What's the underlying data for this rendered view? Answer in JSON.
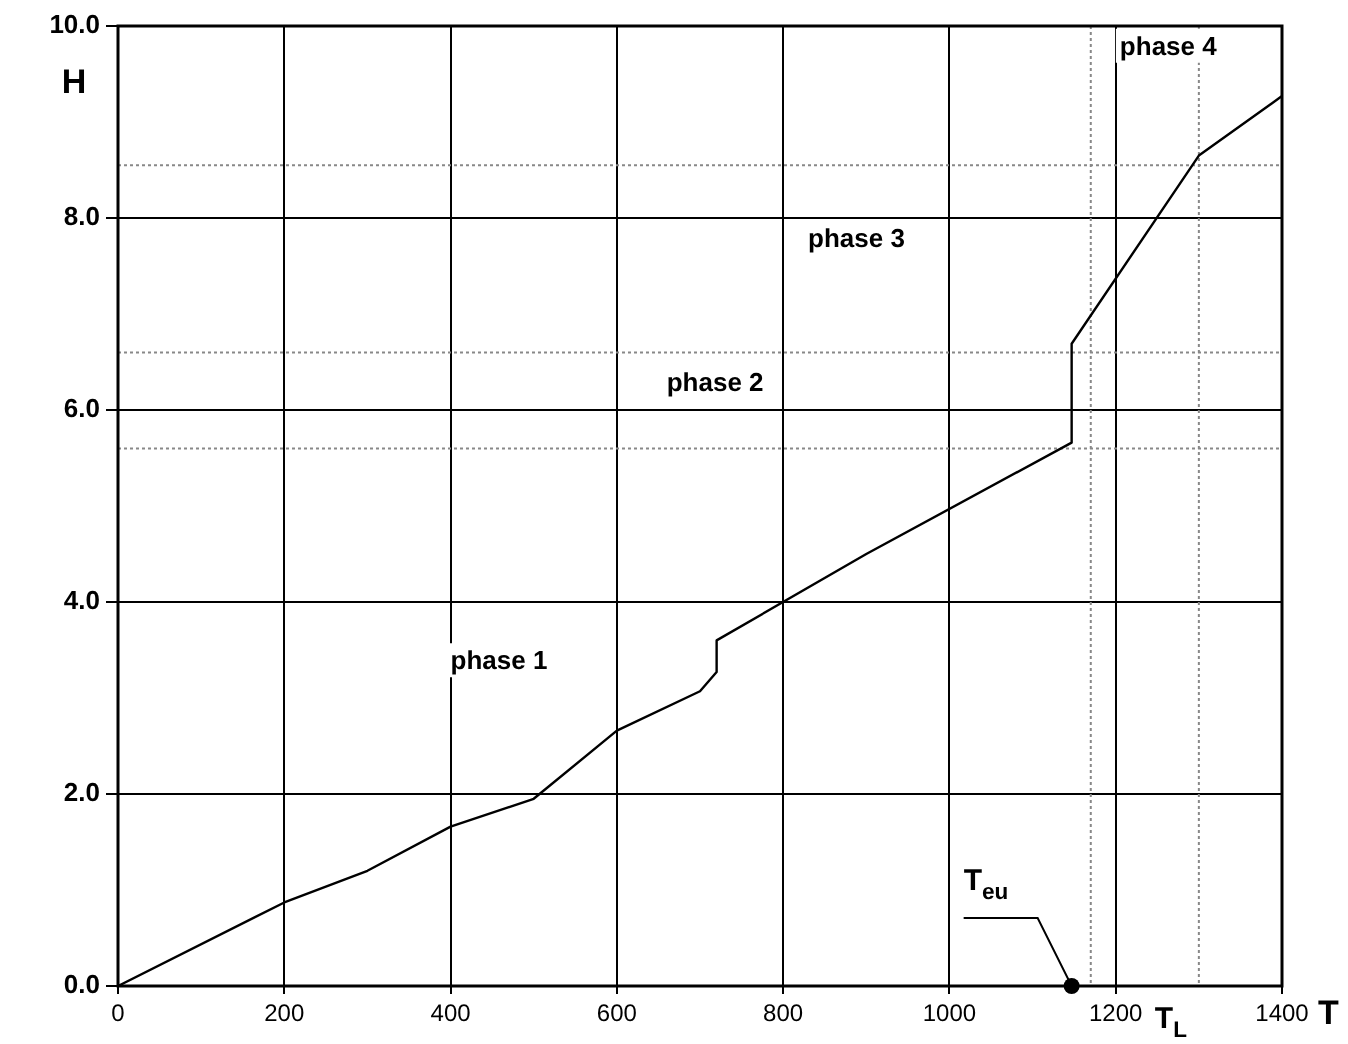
{
  "chart_data": {
    "type": "line",
    "xlabel": "T",
    "ylabel": "H",
    "x": [
      0,
      200,
      300,
      400,
      500,
      600,
      700,
      720,
      720,
      900,
      1147,
      1147,
      1300,
      1400
    ],
    "series": [
      {
        "color": "#000000",
        "values": [
          0,
          0.87,
          1.2,
          1.66,
          1.95,
          2.66,
          3.07,
          3.27,
          3.6,
          4.5,
          5.66,
          6.69,
          8.65,
          9.27
        ]
      }
    ],
    "xlim": [
      0,
      1400
    ],
    "xticks": [
      0,
      200,
      400,
      600,
      800,
      1000,
      1200,
      1400
    ],
    "ylim": [
      0,
      10
    ],
    "yticks": [
      {
        "value": 0,
        "label": "0.0"
      },
      {
        "value": 2,
        "label": "2.0"
      },
      {
        "value": 4,
        "label": "4.0"
      },
      {
        "value": 6,
        "label": "6.0"
      },
      {
        "value": 8,
        "label": "8.0"
      },
      {
        "value": 10,
        "label": "10.0"
      }
    ],
    "grid": true,
    "marker": "none",
    "line_style": "solid",
    "ref_lines": [
      {
        "axis": "y",
        "value": 5.6,
        "color": "#888888",
        "line_style": "dotted"
      },
      {
        "axis": "y",
        "value": 6.6,
        "color": "#888888",
        "line_style": "dotted"
      },
      {
        "axis": "y",
        "value": 8.55,
        "color": "#888888",
        "line_style": "dotted"
      },
      {
        "axis": "x",
        "value": 1170,
        "color": "#888888",
        "line_style": "dotted"
      },
      {
        "axis": "x",
        "value": 1300,
        "label": "T$_{L}$",
        "color": "#888888",
        "line_style": "dotted"
      }
    ],
    "annotations": [
      "phase 1",
      "phase 2",
      "phase 3",
      "phase 4",
      {
        "text": "T$_{eu}$",
        "x": 1147,
        "y": 0
      }
    ]
  }
}
